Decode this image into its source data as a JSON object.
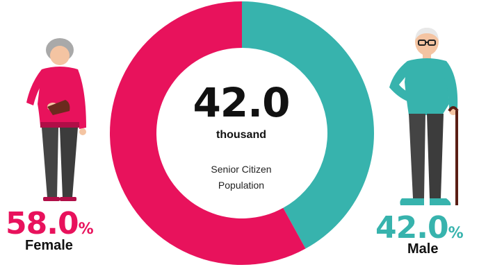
{
  "chart_data": {
    "type": "donut",
    "center_value": "42.0",
    "center_unit": "thousand",
    "center_label_lines": [
      "Senior Citizen",
      "Population"
    ],
    "series": [
      {
        "name": "Female",
        "value": 58.0,
        "display": "58.0",
        "unit": "%",
        "color": "#E8125C"
      },
      {
        "name": "Male",
        "value": 42.0,
        "display": "42.0",
        "unit": "%",
        "color": "#37B3AD"
      }
    ]
  },
  "icons": {
    "female": "elderly-woman-icon",
    "male": "elderly-man-with-cane-icon"
  }
}
